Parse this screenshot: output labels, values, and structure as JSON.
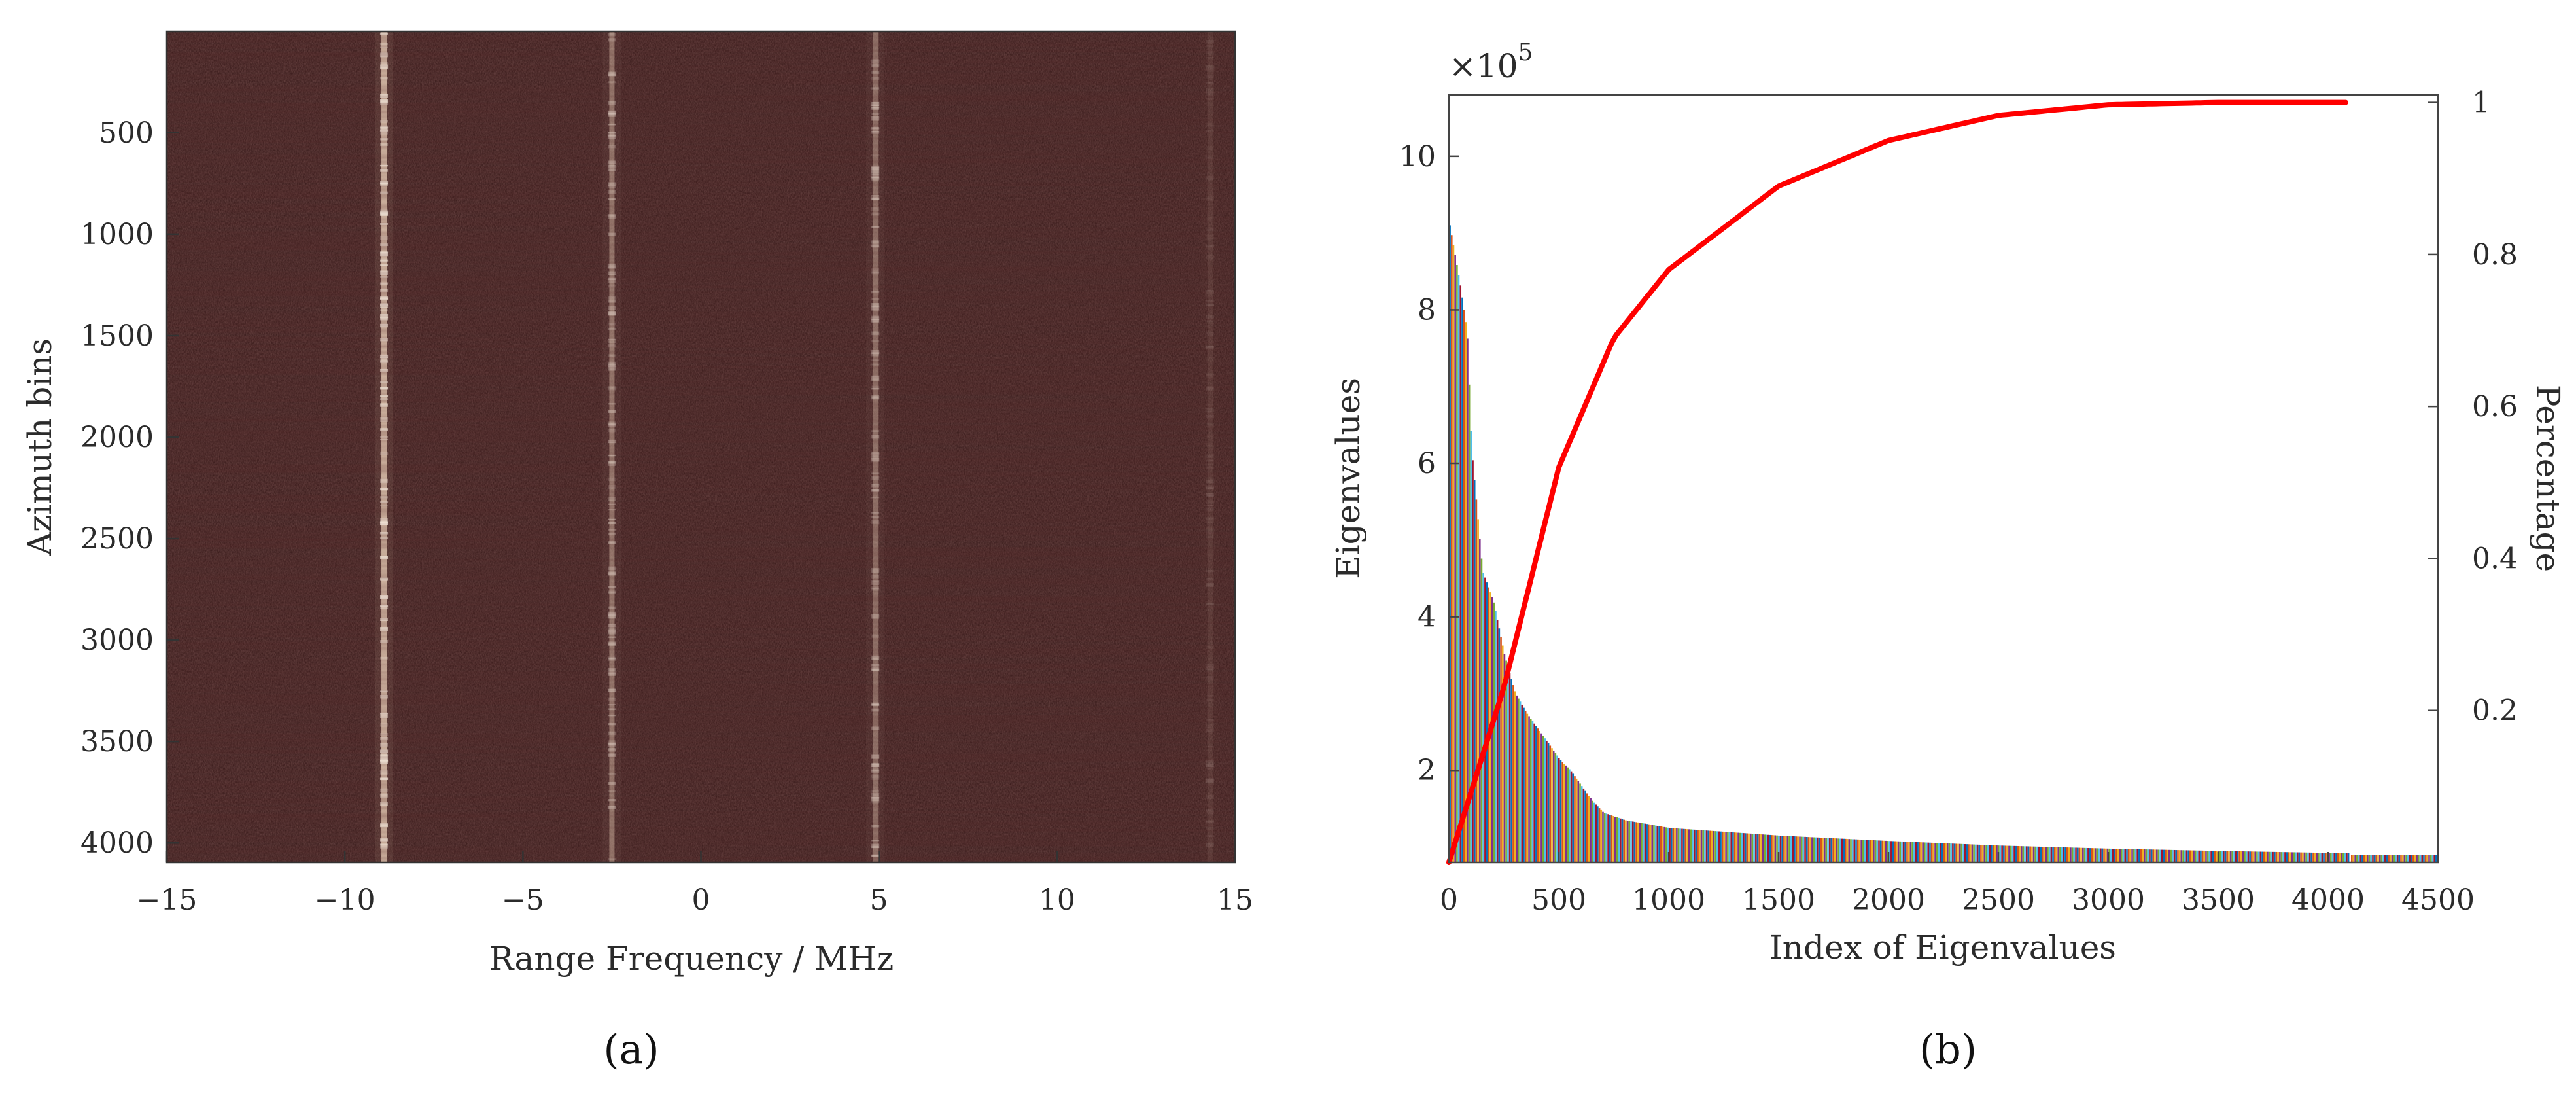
{
  "captions": {
    "a": "(a)",
    "b": "(b)"
  },
  "chart_data": [
    {
      "type": "heatmap",
      "panel": "a",
      "xlabel": "Range Frequency / MHz",
      "ylabel": "Azimuth bins",
      "xlim": [
        -15,
        15
      ],
      "ylim": [
        1,
        4096
      ],
      "y_reversed": true,
      "xticks": [
        -15,
        -10,
        -5,
        0,
        5,
        10,
        15
      ],
      "xtick_labels": [
        "−15",
        "−10",
        "−5",
        "0",
        "5",
        "10",
        "15"
      ],
      "yticks": [
        500,
        1000,
        1500,
        2000,
        2500,
        3000,
        3500,
        4000
      ],
      "ytick_labels": [
        "500",
        "1000",
        "1500",
        "2000",
        "2500",
        "3000",
        "3500",
        "4000"
      ],
      "background_color": "#2e1414",
      "line_color": "#f4dcc4",
      "interference_lines_mhz": [
        {
          "freq": -8.9,
          "intensity": 0.95
        },
        {
          "freq": -2.5,
          "intensity": 0.55
        },
        {
          "freq": 4.9,
          "intensity": 0.5
        },
        {
          "freq": 14.3,
          "intensity": 0.12
        }
      ]
    },
    {
      "type": "bar",
      "panel": "b",
      "xlabel": "Index of Eigenvalues",
      "ylabel": "Eigenvalues",
      "y2label": "Percentage",
      "y_multiplier_label": "×10",
      "y_multiplier_exp": "5",
      "xlim": [
        0,
        4500
      ],
      "ylim": [
        0.8,
        10.8
      ],
      "y2lim": [
        0,
        1.01
      ],
      "xticks": [
        0,
        500,
        1000,
        1500,
        2000,
        2500,
        3000,
        3500,
        4000,
        4500
      ],
      "xtick_labels": [
        "0",
        "500",
        "1000",
        "1500",
        "2000",
        "2500",
        "3000",
        "3500",
        "4000",
        "4500"
      ],
      "yticks": [
        2,
        4,
        6,
        8,
        10
      ],
      "ytick_labels": [
        "2",
        "4",
        "6",
        "8",
        "10"
      ],
      "y2ticks": [
        0.2,
        0.4,
        0.6,
        0.8,
        1
      ],
      "y2tick_labels": [
        "0.2",
        "0.4",
        "0.6",
        "0.8",
        "1"
      ],
      "bar_colors": [
        "#0072bd",
        "#d95319",
        "#edb120",
        "#7e2f8e",
        "#77ac30",
        "#4dbeee",
        "#a2142f"
      ],
      "eigenvalue_curve": {
        "index": [
          1,
          20,
          50,
          80,
          100,
          150,
          200,
          250,
          300,
          350,
          400,
          450,
          500,
          550,
          600,
          650,
          700,
          800,
          1000,
          1500,
          2000,
          2500,
          3000,
          3500,
          4096
        ],
        "value": [
          9.1,
          8.8,
          8.3,
          7.7,
          6.2,
          4.6,
          4.2,
          3.5,
          3.0,
          2.75,
          2.55,
          2.35,
          2.15,
          2.0,
          1.8,
          1.6,
          1.45,
          1.35,
          1.25,
          1.15,
          1.08,
          1.02,
          0.98,
          0.95,
          0.92
        ]
      },
      "cumulative_percentage": {
        "color": "#ff0000",
        "index": [
          0,
          250,
          500,
          750,
          1000,
          1500,
          2000,
          2500,
          3000,
          3500,
          3800,
          4096
        ],
        "value": [
          0.0,
          0.23,
          0.52,
          0.69,
          0.78,
          0.89,
          0.95,
          0.983,
          0.997,
          1.0,
          1.0,
          1.0
        ]
      }
    }
  ]
}
